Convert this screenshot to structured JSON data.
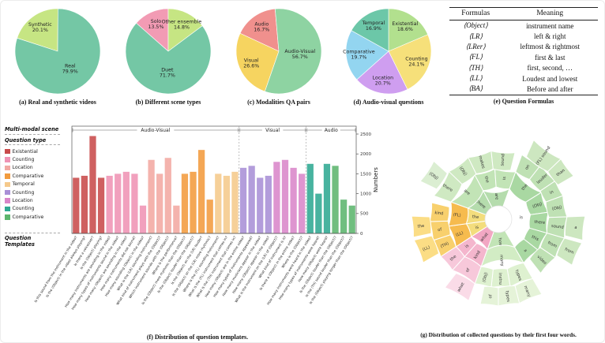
{
  "chart_data": [
    {
      "type": "pie",
      "caption": "(a) Real and synthetic videos",
      "start": 162,
      "dir": "cw",
      "slices": [
        {
          "label": "Synthetic",
          "pct": 20.1,
          "color": "#c6e583"
        },
        {
          "label": "Real",
          "pct": 79.9,
          "color": "#74c7a5"
        }
      ]
    },
    {
      "type": "pie",
      "caption": "(b) Different scene types",
      "start": 138.6,
      "dir": "cw",
      "slices": [
        {
          "label": "Solo",
          "pct": 13.5,
          "color": "#f29bb4"
        },
        {
          "label": "Other ensemble",
          "pct": 14.8,
          "color": "#c6e583"
        },
        {
          "label": "Duet",
          "pct": 71.7,
          "color": "#74c7a5"
        }
      ]
    },
    {
      "type": "pie",
      "caption": "(c) Modalities QA pairs",
      "start": 95,
      "dir": "ccw",
      "slices": [
        {
          "label": "Audio",
          "pct": 16.7,
          "color": "#f0908d"
        },
        {
          "label": "Visual",
          "pct": 26.6,
          "color": "#f6d460"
        },
        {
          "label": "Audio-Visual",
          "pct": 56.7,
          "color": "#8ed3a2"
        }
      ]
    },
    {
      "type": "pie",
      "caption": "(d) Audio-visual questions",
      "start": 90,
      "dir": "cw",
      "slices": [
        {
          "label": "Existential",
          "pct": 18.6,
          "color": "#b2e08e"
        },
        {
          "label": "Counting",
          "pct": 24.1,
          "color": "#f6e07a"
        },
        {
          "label": "Location",
          "pct": 20.7,
          "color": "#cf9ef0"
        },
        {
          "label": "Comparative",
          "pct": 19.7,
          "color": "#93d5f0"
        },
        {
          "label": "Temporal",
          "pct": 16.9,
          "color": "#6cc7a8"
        }
      ]
    },
    {
      "type": "table",
      "caption": "(e) Question Formulas",
      "columns": [
        "Formulas",
        "Meaning"
      ],
      "rows": [
        [
          "⟨Object⟩",
          "instrument name"
        ],
        [
          "⟨LR⟩",
          "left & right"
        ],
        [
          "⟨LRer⟩",
          "leftmost & rightmost"
        ],
        [
          "⟨FL⟩",
          "first & last"
        ],
        [
          "⟨TH⟩",
          "first, second, …"
        ],
        [
          "⟨LL⟩",
          "Loudest and lowest"
        ],
        [
          "⟨BA⟩",
          "Before and after"
        ]
      ]
    },
    {
      "type": "bar",
      "caption": "(f) Distribution of question templates.",
      "ylabel": "Numbers",
      "ylim": [
        0,
        2500
      ],
      "yticks": [
        0,
        500,
        1000,
        1500,
        2000,
        2500
      ],
      "legend": {
        "scene_header": "Multi-modal scene",
        "type_header": "Question type",
        "xlabel": "Question Templates",
        "items": [
          {
            "label": "Existential",
            "color": "#c84a4a"
          },
          {
            "label": "Counting",
            "color": "#ef93b4"
          },
          {
            "label": "Location",
            "color": "#f2a8a2"
          },
          {
            "label": "Comparative",
            "color": "#f29b3e"
          },
          {
            "label": "Temporal",
            "color": "#f5c98b"
          },
          {
            "label": "Counting",
            "color": "#a98fd6"
          },
          {
            "label": "Location",
            "color": "#d986c9"
          },
          {
            "label": "Counting",
            "color": "#2fa992"
          },
          {
            "label": "Comparative",
            "color": "#5cb56d"
          }
        ]
      },
      "sections": [
        {
          "label": "Audio-Visual",
          "from": 0,
          "to": 19
        },
        {
          "label": "Visual",
          "from": 20,
          "to": 27
        },
        {
          "label": "Audio",
          "from": 28,
          "to": 33
        }
      ],
      "bars": [
        {
          "label": "Is this sound from the instrument in the video?",
          "value": 1400,
          "color": "#c84a4a"
        },
        {
          "label": "Is the ⟨Object⟩ in the video always playing?",
          "value": 1450,
          "color": "#c84a4a"
        },
        {
          "label": "Is there a voiceover?",
          "value": 2450,
          "color": "#c84a4a"
        },
        {
          "label": "Is the ⟨Object⟩ playing?",
          "value": 1400,
          "color": "#c84a4a"
        },
        {
          "label": "How many instruments are sounding in the video?",
          "value": 1450,
          "color": "#ef93b4"
        },
        {
          "label": "How many types of instruments sound in the video?",
          "value": 1500,
          "color": "#ef93b4"
        },
        {
          "label": "How many ⟨Object⟩ are sounding in the video?",
          "value": 1550,
          "color": "#ef93b4"
        },
        {
          "label": "How many instruments did not sound?",
          "value": 1500,
          "color": "#ef93b4"
        },
        {
          "label": "How many sounding ⟨Object⟩ in the video?",
          "value": 700,
          "color": "#ef93b4"
        },
        {
          "label": "What is the ⟨LR⟩ sounding instrument?",
          "value": 1850,
          "color": "#f2a8a2"
        },
        {
          "label": "What kind of instrument plays with the ⟨Object⟩?",
          "value": 1500,
          "color": "#f2a8a2"
        },
        {
          "label": "Which instrument sounds with the ⟨Object⟩?",
          "value": 1900,
          "color": "#f2a8a2"
        },
        {
          "label": "Where is the performance?",
          "value": 700,
          "color": "#f2a8a2"
        },
        {
          "label": "Is the ⟨Object⟩ more rhythmic than the ⟨Object⟩?",
          "value": 1500,
          "color": "#f29b3e"
        },
        {
          "label": "Is the ⟨Object⟩ louder than the ⟨Object⟩?",
          "value": 1550,
          "color": "#f29b3e"
        },
        {
          "label": "Is the ⟨Object⟩ on the ⟨LR⟩ louder?",
          "value": 2100,
          "color": "#f29b3e"
        },
        {
          "label": "Is the ⟨Object⟩ on the ⟨LR⟩ more rhythmic?",
          "value": 850,
          "color": "#f29b3e"
        },
        {
          "label": "Where is the ⟨FL⟩ sounding instrument?",
          "value": 1500,
          "color": "#f5c98b"
        },
        {
          "label": "What is the ⟨FL⟩ instrument that comes in?",
          "value": 1450,
          "color": "#f5c98b"
        },
        {
          "label": "What is the ⟨TH⟩ instrument that comes in?",
          "value": 1550,
          "color": "#f5c98b"
        },
        {
          "label": "How many ⟨Object⟩ are in the entire video?",
          "value": 1650,
          "color": "#a98fd6"
        },
        {
          "label": "How many types of instruments appeared?",
          "value": 1700,
          "color": "#a98fd6"
        },
        {
          "label": "How many musicians appear in the video?",
          "value": 1400,
          "color": "#a98fd6"
        },
        {
          "label": "How many ⟨Object⟩ appear in the video?",
          "value": 1450,
          "color": "#a98fd6"
        },
        {
          "label": "What is the instrument on the ⟨LR⟩ of ⟨Object⟩?",
          "value": 1800,
          "color": "#d986c9"
        },
        {
          "label": "What kind of instrument is it?",
          "value": 1850,
          "color": "#d986c9"
        },
        {
          "label": "Is there a ⟨Object⟩ in the entire video?",
          "value": 1650,
          "color": "#d986c9"
        },
        {
          "label": "Where is the ⟨Object⟩?",
          "value": 1500,
          "color": "#d986c9"
        },
        {
          "label": "How many instruments were heard in the video?",
          "value": 1750,
          "color": "#2fa992"
        },
        {
          "label": "How many types of instruments were heard?",
          "value": 1000,
          "color": "#2fa992"
        },
        {
          "label": "How many ⟨Object⟩ were heard?",
          "value": 1750,
          "color": "#2fa992"
        },
        {
          "label": "Is the ⟨Object⟩ louder than the ⟨Object⟩?",
          "value": 1700,
          "color": "#5cb56d"
        },
        {
          "label": "Is the ⟨TH⟩ sound louder than the ⟨Object⟩?",
          "value": 850,
          "color": "#5cb56d"
        },
        {
          "label": "Is the ⟨Object⟩ playing longer than the ⟨Object⟩?",
          "value": 700,
          "color": "#5cb56d"
        }
      ]
    },
    {
      "type": "sunburst",
      "caption": "(g) Distribution of collected questions by their first four words.",
      "rings": [
        [
          17,
          41
        ],
        [
          41,
          64
        ],
        [
          64,
          87
        ],
        [
          87,
          110
        ]
      ],
      "segments": [
        {
          "r": 0,
          "a0": 20,
          "a1": 150,
          "t": "is",
          "c": "#96cf93"
        },
        {
          "r": 0,
          "a0": 150,
          "a1": 200,
          "t": "how",
          "c": "#c2e4b6"
        },
        {
          "r": 0,
          "a0": 200,
          "a1": 237,
          "t": "what",
          "c": "#f2a7c3"
        },
        {
          "r": 0,
          "a0": 237,
          "a1": 262,
          "t": "is",
          "c": "#f3dd7d"
        },
        {
          "r": 0,
          "a0": 262,
          "a1": 290,
          "t": "the",
          "c": "#f3dd7d"
        },
        {
          "r": 0,
          "a0": 290,
          "a1": 332,
          "t": "there",
          "c": "#b5dcad"
        },
        {
          "r": 0,
          "a0": 332,
          "a1": 380,
          "t": "are",
          "c": "#b5dcad"
        },
        {
          "r": 1,
          "a0": 20,
          "a1": 58,
          "t": "the",
          "c": "#a9d8a2"
        },
        {
          "r": 1,
          "a0": 58,
          "a1": 82,
          "t": "⟨Obj⟩",
          "c": "#a9d8a2"
        },
        {
          "r": 1,
          "a0": 82,
          "a1": 106,
          "t": "there",
          "c": "#a9d8a2"
        },
        {
          "r": 1,
          "a0": 106,
          "a1": 128,
          "t": "this",
          "c": "#a9d8a2"
        },
        {
          "r": 1,
          "a0": 128,
          "a1": 150,
          "t": "a",
          "c": "#a9d8a2"
        },
        {
          "r": 1,
          "a0": 150,
          "a1": 200,
          "t": "many",
          "c": "#d2ecc4"
        },
        {
          "r": 1,
          "a0": 200,
          "a1": 222,
          "t": "kind",
          "c": "#f4b6cd"
        },
        {
          "r": 1,
          "a0": 222,
          "a1": 237,
          "t": "is",
          "c": "#f4b6cd"
        },
        {
          "r": 1,
          "a0": 237,
          "a1": 262,
          "t": "⟨LL⟩",
          "c": "#f6bb4e"
        },
        {
          "r": 1,
          "a0": 262,
          "a1": 290,
          "t": "⟨FL⟩",
          "c": "#f6bb4e"
        },
        {
          "r": 1,
          "a0": 290,
          "a1": 332,
          "t": "are",
          "c": "#c2e4b6"
        },
        {
          "r": 1,
          "a0": 332,
          "a1": 356,
          "t": "the",
          "c": "#c2e4b6"
        },
        {
          "r": 1,
          "a0": 356,
          "a1": 380,
          "t": "is",
          "c": "#c2e4b6"
        },
        {
          "r": 2,
          "a0": 20,
          "a1": 38,
          "t": "on",
          "c": "#bfe1b4"
        },
        {
          "r": 2,
          "a0": 38,
          "a1": 56,
          "t": "louder",
          "c": "#bfe1b4"
        },
        {
          "r": 2,
          "a0": 56,
          "a1": 70,
          "t": "in",
          "c": "#bfe1b4"
        },
        {
          "r": 2,
          "a0": 70,
          "a1": 88,
          "t": "⟨Obj⟩",
          "c": "#bfe1b4"
        },
        {
          "r": 2,
          "a0": 88,
          "a1": 106,
          "t": "sound",
          "c": "#bfe1b4"
        },
        {
          "r": 2,
          "a0": 106,
          "a1": 124,
          "t": "from",
          "c": "#bfe1b4"
        },
        {
          "r": 2,
          "a0": 124,
          "a1": 142,
          "t": "video",
          "c": "#bfe1b4"
        },
        {
          "r": 2,
          "a0": 150,
          "a1": 170,
          "t": "types",
          "c": "#def1d0"
        },
        {
          "r": 2,
          "a0": 170,
          "a1": 186,
          "t": "instru",
          "c": "#def1d0"
        },
        {
          "r": 2,
          "a0": 186,
          "a1": 200,
          "t": "⟨Obj⟩",
          "c": "#def1d0"
        },
        {
          "r": 2,
          "a0": 200,
          "a1": 222,
          "t": "of",
          "c": "#f7c8da"
        },
        {
          "r": 2,
          "a0": 222,
          "a1": 237,
          "t": "the",
          "c": "#f7c8da"
        },
        {
          "r": 2,
          "a0": 237,
          "a1": 252,
          "t": "⟨TH⟩",
          "c": "#f8d06d"
        },
        {
          "r": 2,
          "a0": 252,
          "a1": 268,
          "t": "of",
          "c": "#f8d06d"
        },
        {
          "r": 2,
          "a0": 268,
          "a1": 284,
          "t": "kind",
          "c": "#f8d06d"
        },
        {
          "r": 2,
          "a0": 290,
          "a1": 314,
          "t": "there",
          "c": "#cfe9c2"
        },
        {
          "r": 2,
          "a0": 314,
          "a1": 334,
          "t": "⟨Obj⟩",
          "c": "#cfe9c2"
        },
        {
          "r": 2,
          "a0": 334,
          "a1": 354,
          "t": "makes",
          "c": "#cfe9c2"
        },
        {
          "r": 2,
          "a0": 354,
          "a1": 374,
          "t": "sound",
          "c": "#cfe9c2"
        },
        {
          "r": 3,
          "a0": 24,
          "a1": 46,
          "t": "⟨FL⟩ sound",
          "c": "#cde7c0"
        },
        {
          "r": 3,
          "a0": 46,
          "a1": 60,
          "t": "than",
          "c": "#cde7c0"
        },
        {
          "r": 3,
          "a0": 88,
          "a1": 104,
          "t": "a",
          "c": "#cde7c0"
        },
        {
          "r": 3,
          "a0": 106,
          "a1": 122,
          "t": "from",
          "c": "#cde7c0"
        },
        {
          "r": 3,
          "a0": 150,
          "a1": 166,
          "t": "many",
          "c": "#e5f3d8"
        },
        {
          "r": 3,
          "a0": 166,
          "a1": 180,
          "t": "types",
          "c": "#e5f3d8"
        },
        {
          "r": 3,
          "a0": 180,
          "a1": 192,
          "t": "of",
          "c": "#e5f3d8"
        },
        {
          "r": 3,
          "a0": 200,
          "a1": 218,
          "t": "what",
          "c": "#fadbe7"
        },
        {
          "r": 3,
          "a0": 240,
          "a1": 256,
          "t": "⟨LL⟩",
          "c": "#fbdd85"
        },
        {
          "r": 3,
          "a0": 258,
          "a1": 272,
          "t": "the",
          "c": "#fbdd85"
        },
        {
          "r": 3,
          "a0": 296,
          "a1": 312,
          "t": "⟨Obj⟩",
          "c": "#dbeed2"
        }
      ]
    }
  ]
}
